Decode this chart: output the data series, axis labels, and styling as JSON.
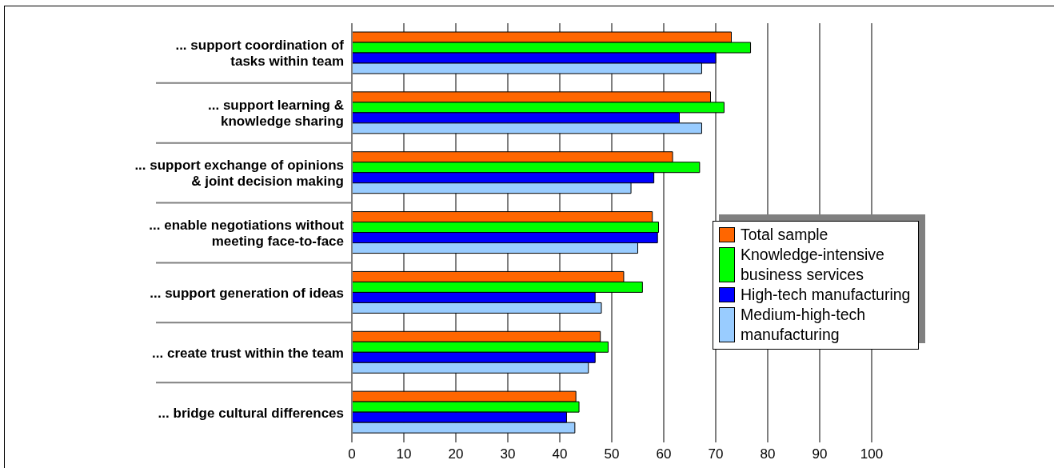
{
  "chart_data": {
    "type": "bar",
    "orientation": "horizontal",
    "categories": [
      "... support coordination of\ntasks within team",
      "... support learning &\nknowledge sharing",
      "... support exchange of opinions\n& joint decision making",
      "... enable negotiations without\nmeeting face-to-face",
      "... support generation of ideas",
      "... create trust within the team",
      "... bridge cultural differences"
    ],
    "series": [
      {
        "name": "Total sample",
        "color": "#ff6600",
        "values": [
          73,
          69,
          61.7,
          57.8,
          52.3,
          47.8,
          43.1
        ]
      },
      {
        "name": "Knowledge-intensive business services",
        "color": "#00ff00",
        "values": [
          76.7,
          71.6,
          66.9,
          59,
          55.9,
          49.3,
          43.7
        ]
      },
      {
        "name": "High-tech manufacturing",
        "color": "#0000ff",
        "values": [
          70,
          63,
          58.1,
          58.8,
          46.8,
          46.8,
          41.3
        ]
      },
      {
        "name": "Medium-high-tech manufacturing",
        "color": "#99ccff",
        "values": [
          67.3,
          67.3,
          53.7,
          55,
          48,
          45.5,
          42.9
        ]
      }
    ],
    "xlim": [
      0,
      100
    ],
    "xticks": [
      0,
      10,
      20,
      30,
      40,
      50,
      60,
      70,
      80,
      90,
      100
    ],
    "grid": "x",
    "legend": "right"
  }
}
